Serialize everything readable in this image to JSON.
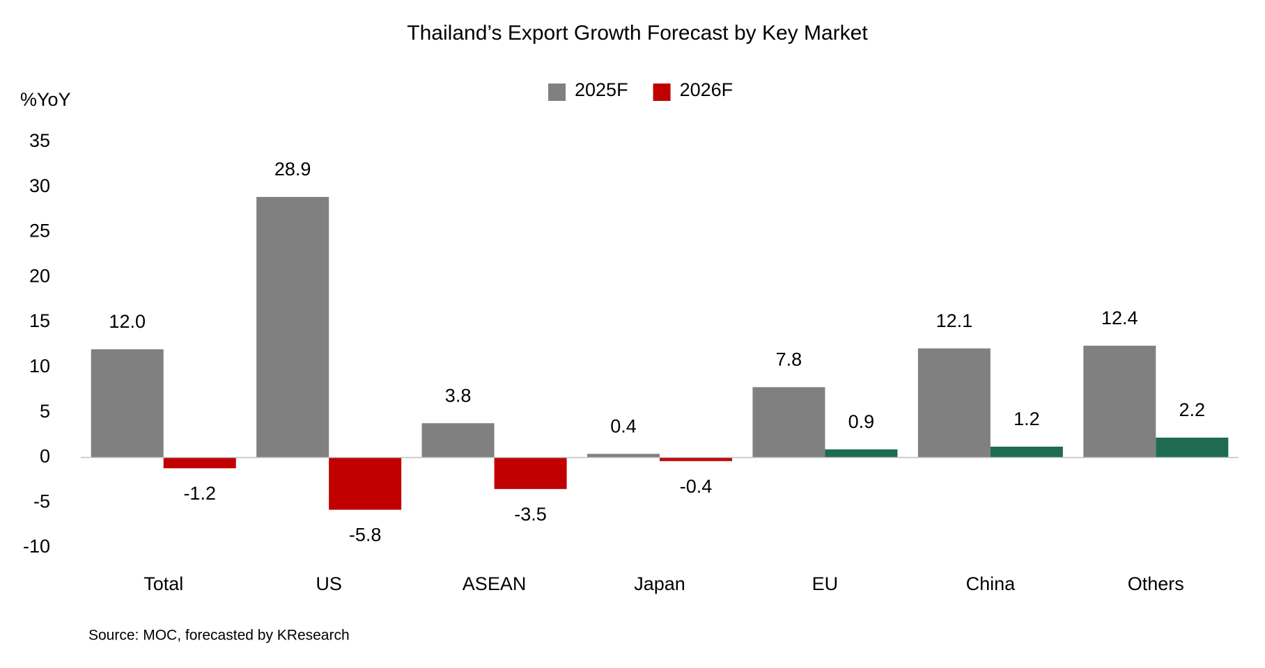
{
  "chart_data": {
    "type": "bar",
    "title": "Thailand’s Export Growth Forecast by Key Market",
    "y_label": "%YoY",
    "source": "Source: MOC, forecasted by KResearch",
    "categories": [
      "Total",
      "US",
      "ASEAN",
      "Japan",
      "EU",
      "China",
      "Others"
    ],
    "series": [
      {
        "name": "2025F",
        "color": "#808080",
        "values": [
          12.0,
          28.9,
          3.8,
          0.4,
          7.8,
          12.1,
          12.4
        ],
        "value_labels": [
          "12.0",
          "28.9",
          "3.8",
          "0.4",
          "7.8",
          "12.1",
          "12.4"
        ]
      },
      {
        "name": "2026F",
        "color": "#c00000",
        "colors": [
          "#c00000",
          "#c00000",
          "#c00000",
          "#c00000",
          "#1e6b52",
          "#1e6b52",
          "#1e6b52"
        ],
        "values": [
          -1.2,
          -5.8,
          -3.5,
          -0.4,
          0.9,
          1.2,
          2.2
        ],
        "value_labels": [
          "-1.2",
          "-5.8",
          "-3.5",
          "-0.4",
          "0.9",
          "1.2",
          "2.2"
        ]
      }
    ],
    "ylim": [
      -10,
      35
    ],
    "yticks": [
      -10,
      -5,
      0,
      5,
      10,
      15,
      20,
      25,
      30,
      35
    ],
    "grid": false,
    "legend": "top"
  }
}
